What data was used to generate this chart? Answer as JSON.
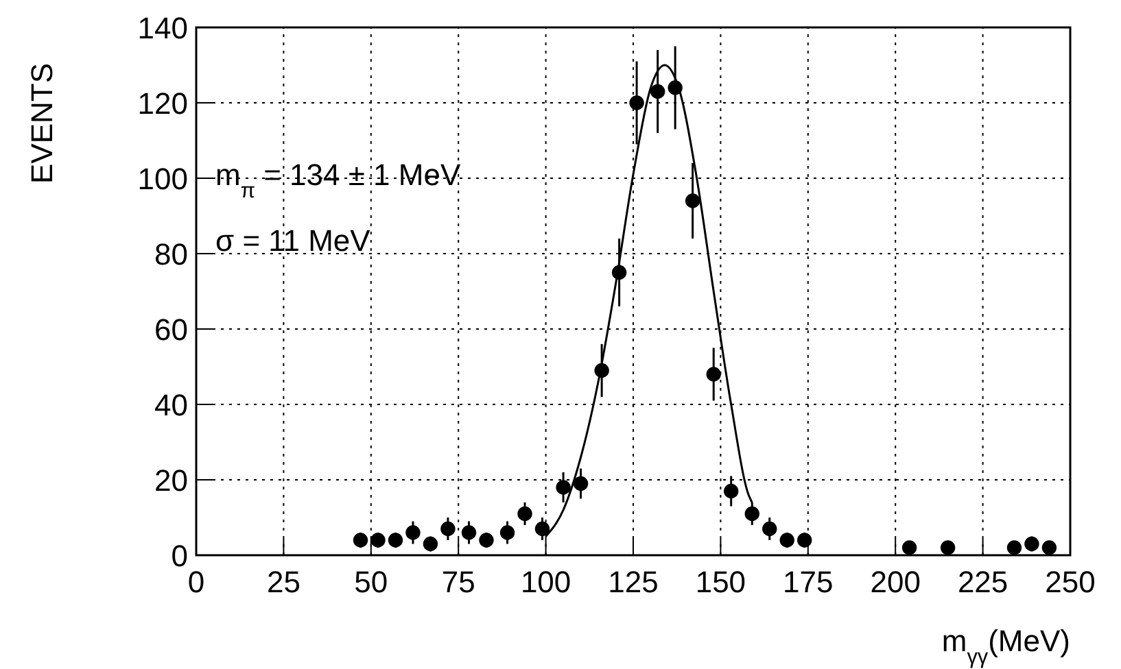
{
  "chart_data": {
    "type": "scatter",
    "xlabel": "m$_{γγ}$(MeV)",
    "ylabel": "EVENTS",
    "xlim": [
      0,
      250
    ],
    "ylim": [
      0,
      140
    ],
    "xticks": [
      0,
      25,
      50,
      75,
      100,
      125,
      150,
      175,
      200,
      225,
      250
    ],
    "yticks": [
      0,
      20,
      40,
      60,
      80,
      100,
      120,
      140
    ],
    "grid": true,
    "annotations": [
      "m$_{π}$ = 134 ± 1 MeV",
      "σ = 11 MeV"
    ],
    "series": [
      {
        "color": "#000000",
        "marker": "circle",
        "x": [
          47,
          52,
          57,
          62,
          67,
          72,
          78,
          83,
          89,
          94,
          99,
          105,
          110,
          116,
          121,
          126,
          132,
          137,
          142,
          148,
          153,
          159,
          164,
          169,
          174,
          204,
          215,
          234,
          239,
          244
        ],
        "values": [
          4,
          4,
          4,
          6,
          3,
          7,
          6,
          4,
          6,
          11,
          7,
          18,
          19,
          49,
          75,
          120,
          123,
          124,
          94,
          48,
          17,
          11,
          7,
          4,
          4,
          2,
          2,
          2,
          3,
          2
        ],
        "errors": [
          2,
          2,
          2,
          3,
          2,
          3,
          3,
          2,
          3,
          3,
          3,
          4,
          4,
          7,
          9,
          11,
          11,
          11,
          10,
          7,
          4,
          3,
          3,
          2,
          2,
          1,
          1,
          1,
          2,
          1
        ]
      },
      {
        "type": "line",
        "color": "#000000",
        "marker": "none",
        "line_style": "solid",
        "x": [
          100,
          105,
          110,
          115,
          120,
          125,
          130,
          134,
          138,
          143,
          148,
          153,
          158,
          159
        ],
        "values": [
          5,
          12,
          26,
          46,
          72,
          101,
          124,
          130,
          124,
          101,
          70,
          40,
          16,
          14
        ]
      }
    ]
  }
}
